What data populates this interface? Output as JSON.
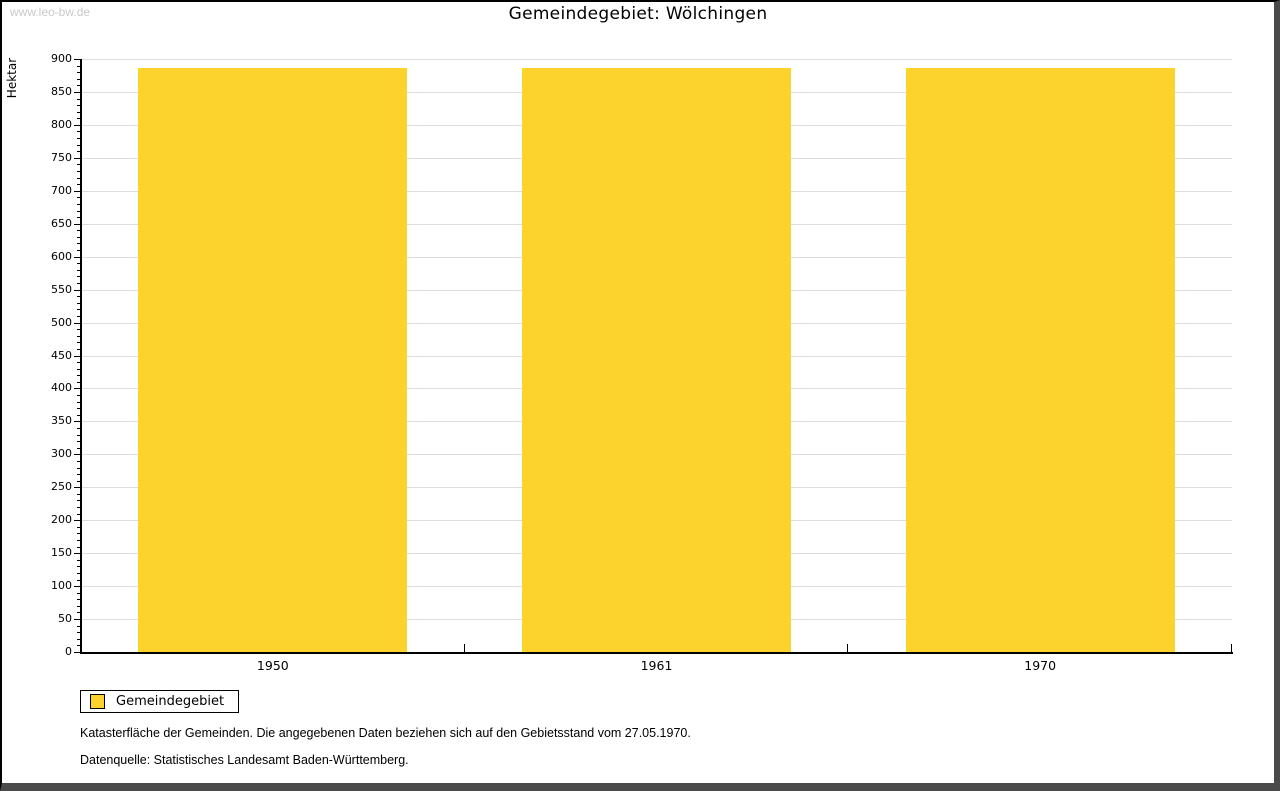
{
  "watermark": "www.leo-bw.de",
  "title": "Gemeindegebiet: Wölchingen",
  "legend": {
    "label": "Gemeindegebiet"
  },
  "notes": {
    "line1": "Katasterfläche der Gemeinden. Die angegebenen Daten beziehen sich auf den Gebietsstand vom 27.05.1970.",
    "line2": "Datenquelle: Statistisches Landesamt Baden-Württemberg."
  },
  "colors": {
    "bar": "#FCD32D",
    "grid": "#dddddd",
    "axis": "#000000",
    "frame": "#4a4a4a",
    "watermark": "#c9c9c9"
  },
  "chart_data": {
    "type": "bar",
    "categories": [
      "1950",
      "1961",
      "1970"
    ],
    "values": [
      887,
      887,
      887
    ],
    "title": "Gemeindegebiet: Wölchingen",
    "xlabel": "",
    "ylabel": "Hektar",
    "ylim": [
      0,
      900
    ],
    "ytick_major": 50,
    "ytick_minor": 10,
    "grid": true,
    "legend": [
      "Gemeindegebiet"
    ],
    "legend_position": "bottom-left",
    "bar_color": "#FCD32D"
  }
}
